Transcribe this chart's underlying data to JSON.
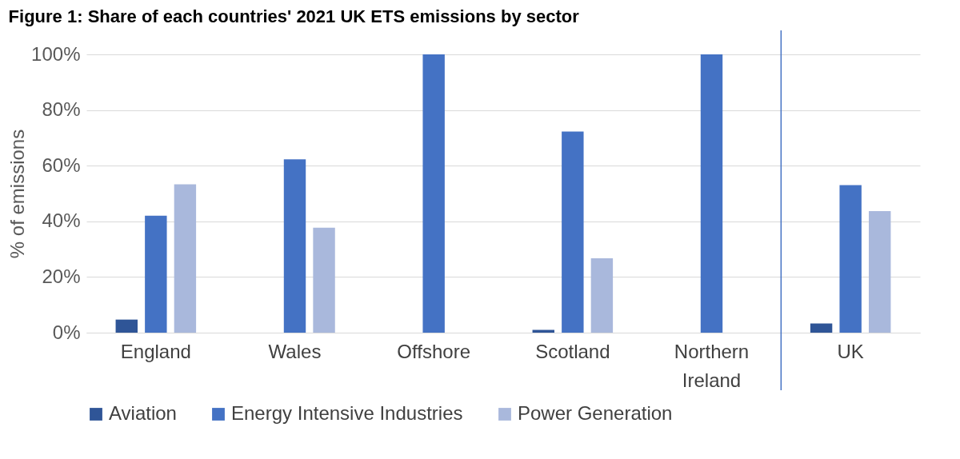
{
  "chart_data": {
    "type": "bar",
    "title": "Figure 1: Share of each countries' 2021 UK ETS emissions by sector",
    "ylabel": "% of emissions",
    "categories": [
      "England",
      "Wales",
      "Offshore",
      "Scotland",
      "Northern Ireland",
      "UK"
    ],
    "series": [
      {
        "name": "Aviation",
        "color": "#2f5597",
        "values": [
          4.7,
          0,
          0,
          1,
          0,
          3.3
        ]
      },
      {
        "name": "Energy Intensive Industries",
        "color": "#4472c4",
        "values": [
          42,
          62.3,
          100,
          72.3,
          100,
          53
        ]
      },
      {
        "name": "Power Generation",
        "color": "#a9b8dc",
        "values": [
          53.3,
          37.7,
          0,
          26.7,
          0,
          43.7
        ]
      }
    ],
    "ylim": [
      0,
      100
    ],
    "yticks": [
      {
        "value": 0,
        "label": "0%"
      },
      {
        "value": 20,
        "label": "20%"
      },
      {
        "value": 40,
        "label": "40%"
      },
      {
        "value": 60,
        "label": "60%"
      },
      {
        "value": 80,
        "label": "80%"
      },
      {
        "value": 100,
        "label": "100%"
      }
    ],
    "grid": "y",
    "legend": "bottom",
    "ref_lines": [
      {
        "axis": "x",
        "value": "UK",
        "color": "#4472c4"
      }
    ]
  }
}
